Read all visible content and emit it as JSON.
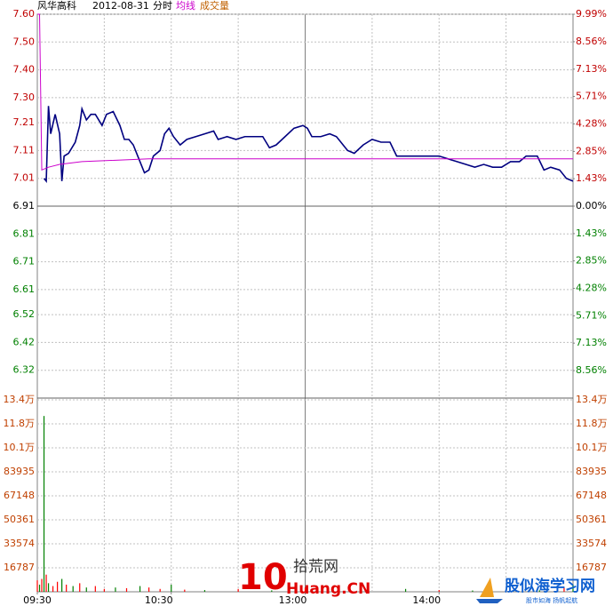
{
  "chart_data": [
    {
      "type": "line",
      "title": "风华高科",
      "date": "2012-08-31",
      "subtitle": "分时",
      "xlim": [
        0,
        240
      ],
      "xgrid": [
        30,
        60,
        90,
        120,
        150,
        180,
        210
      ],
      "ylim": [
        6.22,
        7.6
      ],
      "yticks": [
        {
          "value": 7.6,
          "label": "7.60"
        },
        {
          "value": 7.5,
          "label": "7.50"
        },
        {
          "value": 7.4,
          "label": "7.40"
        },
        {
          "value": 7.3,
          "label": "7.30"
        },
        7.21,
        7.11,
        7.01,
        6.91,
        6.81,
        6.71,
        6.61,
        6.52,
        6.42,
        6.32
      ],
      "y2lim": [
        -9.99,
        9.99
      ],
      "y2ticks": [
        {
          "value": 9.99,
          "label": "9.99%"
        },
        {
          "value": 8.56,
          "label": "8.56%"
        },
        {
          "value": 7.13,
          "label": "7.13%"
        },
        {
          "value": 5.71,
          "label": "5.71%"
        },
        {
          "value": 4.28,
          "label": "4.28%"
        },
        {
          "value": 2.85,
          "label": "2.85%"
        },
        {
          "value": 1.43,
          "label": "1.43%"
        },
        {
          "value": 0,
          "label": "0.00%"
        },
        {
          "value": -1.43,
          "label": "1.43%"
        },
        {
          "value": -2.85,
          "label": "2.85%"
        },
        {
          "value": -4.28,
          "label": "4.28%"
        },
        {
          "value": -5.71,
          "label": "5.71%"
        },
        {
          "value": -7.13,
          "label": "7.13%"
        },
        {
          "value": -8.56,
          "label": "8.56%"
        }
      ],
      "grid": true,
      "series": [
        {
          "color": "#000080",
          "x": [
            3,
            4,
            5,
            6,
            8,
            10,
            11,
            12,
            14,
            17,
            19,
            20,
            22,
            24,
            26,
            29,
            31,
            34,
            37,
            39,
            41,
            43,
            45,
            48,
            50,
            52,
            55,
            57,
            59,
            61,
            64,
            67,
            71,
            75,
            79,
            81,
            85,
            89,
            93,
            97,
            101,
            104,
            107,
            111,
            115,
            119,
            121,
            123,
            127,
            131,
            134,
            137,
            139,
            142,
            146,
            150,
            154,
            158,
            161,
            164,
            168,
            172,
            176,
            180,
            184,
            188,
            192,
            196,
            200,
            204,
            208,
            212,
            216,
            219,
            222,
            224,
            227,
            230,
            234,
            237,
            240
          ],
          "values": [
            7.01,
            7.0,
            7.27,
            7.17,
            7.24,
            7.17,
            7.0,
            7.09,
            7.1,
            7.14,
            7.2,
            7.26,
            7.22,
            7.24,
            7.24,
            7.2,
            7.24,
            7.25,
            7.2,
            7.15,
            7.15,
            7.13,
            7.09,
            7.03,
            7.04,
            7.09,
            7.11,
            7.17,
            7.19,
            7.16,
            7.13,
            7.15,
            7.16,
            7.17,
            7.18,
            7.15,
            7.16,
            7.15,
            7.16,
            7.16,
            7.16,
            7.12,
            7.13,
            7.16,
            7.19,
            7.2,
            7.19,
            7.16,
            7.16,
            7.17,
            7.16,
            7.13,
            7.11,
            7.1,
            7.13,
            7.15,
            7.14,
            7.14,
            7.09,
            7.09,
            7.09,
            7.09,
            7.09,
            7.09,
            7.08,
            7.07,
            7.06,
            7.05,
            7.06,
            7.05,
            7.05,
            7.07,
            7.07,
            7.09,
            7.09,
            7.09,
            7.04,
            7.05,
            7.04,
            7.01,
            7.0
          ]
        },
        {
          "name": "均线",
          "color": "#cc00cc",
          "x": [
            0,
            1,
            2,
            5,
            10,
            20,
            50,
            240
          ],
          "values": [
            7.6,
            7.6,
            7.04,
            7.05,
            7.06,
            7.07,
            7.08,
            7.08
          ]
        }
      ],
      "annotations": [
        "10",
        "拾荒网",
        "Huang.CN",
        "股似海学习网",
        "股市如海 扬帆起航"
      ]
    },
    {
      "type": "bar",
      "xlim": [
        0,
        240
      ],
      "xticks": [
        {
          "value": 0,
          "label": "09:30"
        },
        {
          "value": 60,
          "label": "10:30"
        },
        {
          "value": 120,
          "label": "13:00"
        },
        {
          "value": 180,
          "label": "14:00"
        }
      ],
      "ylim": [
        0,
        134296
      ],
      "yticks": [
        {
          "value": 134296,
          "label": "13.4万"
        },
        {
          "value": 117509,
          "label": "11.8万"
        },
        {
          "value": 100722,
          "label": "10.1万"
        },
        83935,
        67148,
        50361,
        33574,
        16787
      ],
      "series": [
        {
          "name": "成交量",
          "x": [
            0,
            1,
            2,
            3,
            4,
            5,
            7,
            9,
            11,
            13,
            16,
            19,
            22,
            26,
            30,
            35,
            40,
            46,
            50,
            55,
            60,
            66,
            75,
            90,
            105,
            120,
            130,
            145,
            165,
            180,
            195,
            210,
            225,
            236,
            240
          ],
          "values": [
            8000,
            5000,
            9000,
            123000,
            12000,
            6000,
            4000,
            7000,
            9000,
            5000,
            4000,
            6000,
            3000,
            4000,
            2000,
            3000,
            2500,
            4000,
            3000,
            2000,
            5000,
            1500,
            1200,
            2000,
            1000,
            3000,
            1500,
            1000,
            2000,
            1200,
            900,
            1500,
            1000,
            3000,
            5000
          ],
          "colors": [
            "#ff0000",
            "#008000",
            "#ff0000",
            "#008000",
            "#ff0000",
            "#008000",
            "#ff0000",
            "#ff0000",
            "#008000",
            "#ff0000",
            "#008000",
            "#ff0000",
            "#008000",
            "#ff0000",
            "#ff0000",
            "#008000",
            "#ff0000",
            "#008000",
            "#ff0000",
            "#ff0000",
            "#008000",
            "#ff0000",
            "#008000",
            "#ff0000",
            "#008000",
            "#ff0000",
            "#008000",
            "#ff0000",
            "#008000",
            "#ff0000",
            "#008000",
            "#ff0000",
            "#008000",
            "#ff0000",
            "#008000"
          ]
        }
      ]
    }
  ]
}
